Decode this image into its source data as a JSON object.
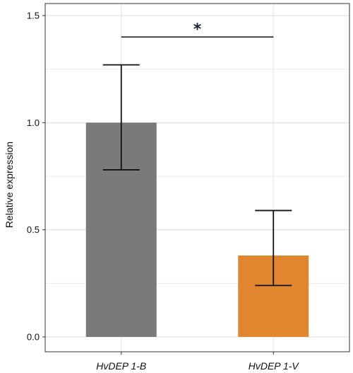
{
  "chart_data": {
    "type": "bar",
    "categories": [
      "HvDEP 1-B",
      "HvDEP 1-V"
    ],
    "values": [
      1.0,
      0.38
    ],
    "error_upper": [
      1.27,
      0.59
    ],
    "error_lower": [
      0.78,
      0.24
    ],
    "ylabel": "Relative expression",
    "xlabel": "",
    "ylim": [
      0,
      1.55
    ],
    "yticks": [
      "0.0",
      "0.5",
      "1.0",
      "1.5"
    ],
    "ytick_values": [
      0.0,
      0.5,
      1.0,
      1.5
    ],
    "minor_gridlines": [
      0.25,
      0.75,
      1.25
    ],
    "bar_colors": [
      "#7a7a7a",
      "#e0862e"
    ],
    "grid": true,
    "significance": {
      "label": "*",
      "between": [
        0,
        1
      ],
      "y": 1.4
    }
  }
}
